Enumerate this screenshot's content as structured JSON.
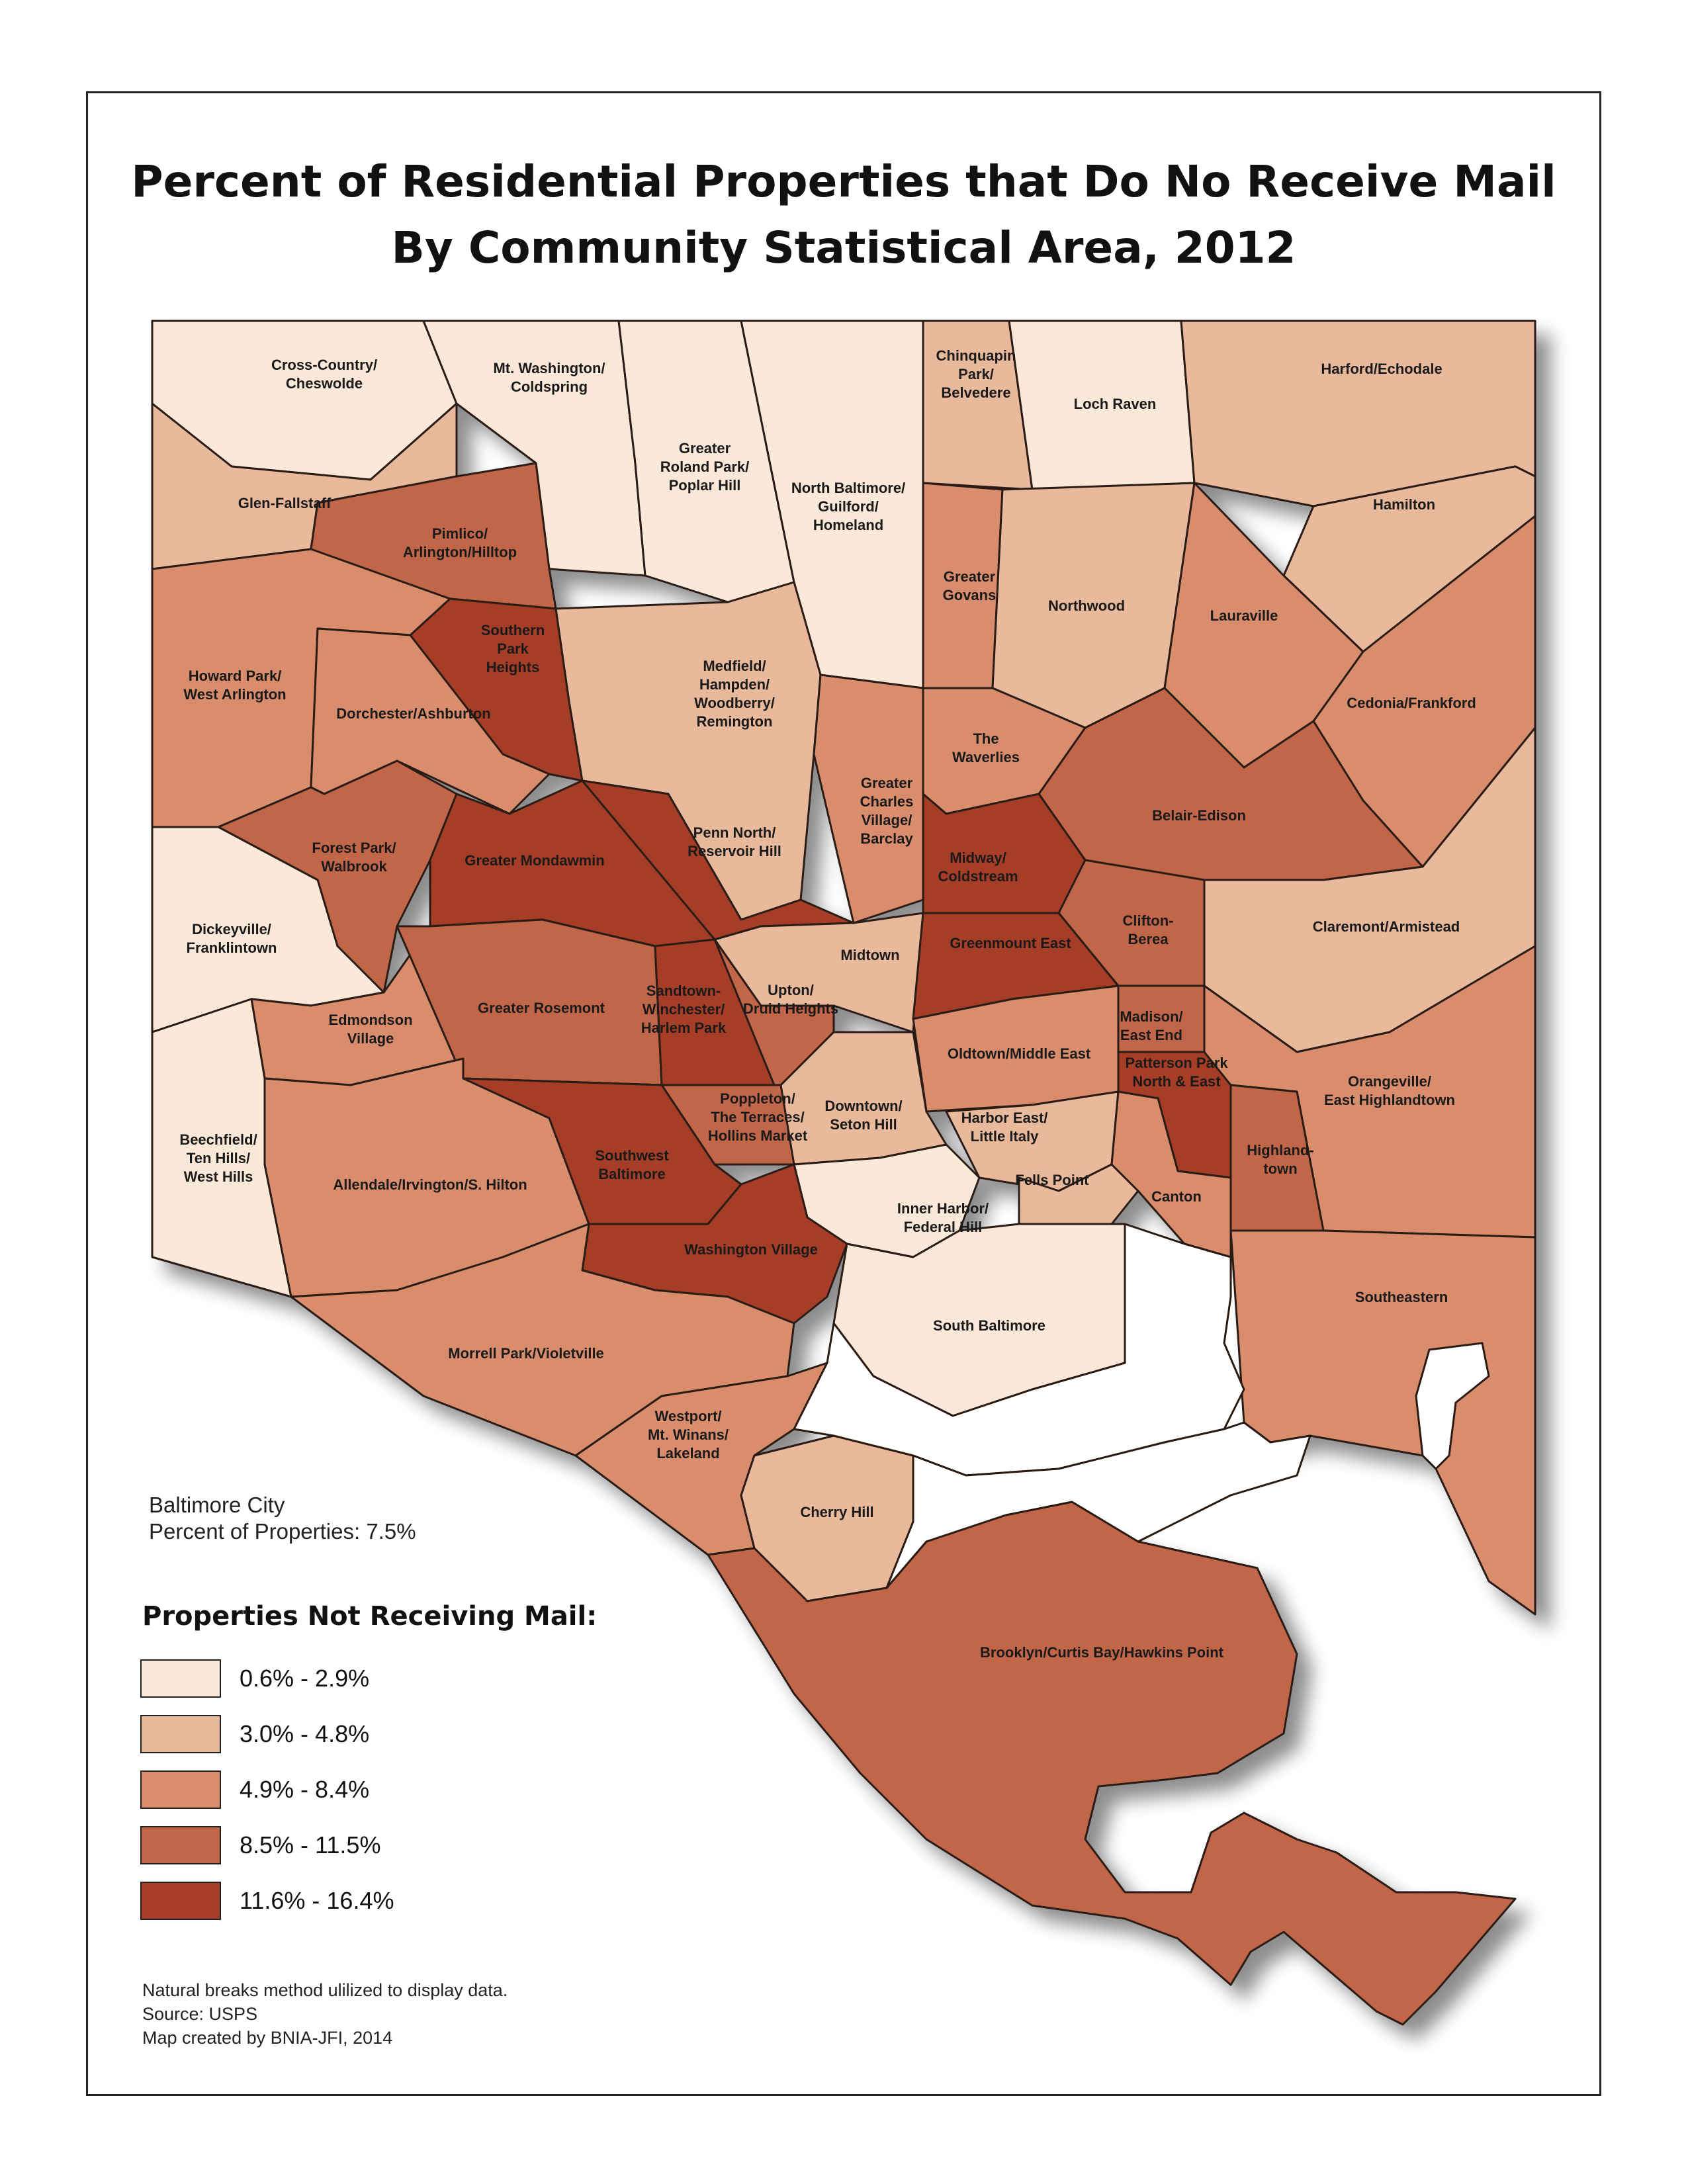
{
  "title": {
    "line1": "Percent of Residential Properties that Do No Receive Mail",
    "line2": "By Community Statistical Area, 2012"
  },
  "colors": {
    "c1": "#fae8d8",
    "c2": "#e9b99c",
    "c3": "#d98d6c",
    "c4": "#c2664a",
    "c5": "#a63d28",
    "water": "#ffffff",
    "border": "#2b1a12"
  },
  "summary": {
    "line1": "Baltimore City",
    "line2": "Percent of Properties: 7.5%"
  },
  "legend": {
    "title": "Properties Not Receiving Mail:",
    "items": [
      {
        "label": "0.6% - 2.9%",
        "color": "#fae8d8"
      },
      {
        "label": "3.0% - 4.8%",
        "color": "#e9b99c"
      },
      {
        "label": "4.9% - 8.4%",
        "color": "#d98d6c"
      },
      {
        "label": "8.5% - 11.5%",
        "color": "#c2664a"
      },
      {
        "label": "11.6% - 16.4%",
        "color": "#a63d28"
      }
    ]
  },
  "notes": {
    "line1": "Natural breaks method ulilized to display data.",
    "line2": "Source: USPS",
    "line3": "Map created by BNIA-JFI, 2014"
  },
  "areas": {
    "cross_country": {
      "name": [
        "Cross-Country/",
        "Cheswolde"
      ],
      "class": 1
    },
    "mt_washington": {
      "name": [
        "Mt. Washington/",
        "Coldspring"
      ],
      "class": 1
    },
    "roland_park": {
      "name": [
        "Greater",
        "Roland Park/",
        "Poplar Hill"
      ],
      "class": 1
    },
    "north_baltimore": {
      "name": [
        "North Baltimore/",
        "Guilford/",
        "Homeland"
      ],
      "class": 1
    },
    "chinquapin": {
      "name": [
        "Chinquapin",
        "Park/",
        "Belvedere"
      ],
      "class": 2
    },
    "loch_raven": {
      "name": [
        "Loch Raven"
      ],
      "class": 1
    },
    "harford": {
      "name": [
        "Harford/Echodale"
      ],
      "class": 2
    },
    "glen_fallstaff": {
      "name": [
        "Glen-Fallstaff"
      ],
      "class": 2
    },
    "pimlico": {
      "name": [
        "Pimlico/",
        "Arlington/Hilltop"
      ],
      "class": 4
    },
    "hamilton": {
      "name": [
        "Hamilton"
      ],
      "class": 2
    },
    "greater_govans": {
      "name": [
        "Greater",
        "Govans"
      ],
      "class": 3
    },
    "northwood": {
      "name": [
        "Northwood"
      ],
      "class": 2
    },
    "lauraville": {
      "name": [
        "Lauraville"
      ],
      "class": 3
    },
    "southern_park": {
      "name": [
        "Southern",
        "Park",
        "Heights"
      ],
      "class": 5
    },
    "howard_park": {
      "name": [
        "Howard Park/",
        "West Arlington"
      ],
      "class": 3
    },
    "medfield": {
      "name": [
        "Medfield/",
        "Hampden/",
        "Woodberry/",
        "Remington"
      ],
      "class": 2
    },
    "dorchester": {
      "name": [
        "Dorchester/Ashburton"
      ],
      "class": 3
    },
    "cedonia": {
      "name": [
        "Cedonia/Frankford"
      ],
      "class": 3
    },
    "waverlies": {
      "name": [
        "The",
        "Waverlies"
      ],
      "class": 3
    },
    "charles_village": {
      "name": [
        "Greater",
        "Charles",
        "Village/",
        "Barclay"
      ],
      "class": 3
    },
    "belair_edison": {
      "name": [
        "Belair-Edison"
      ],
      "class": 4
    },
    "forest_park": {
      "name": [
        "Forest Park/",
        "Walbrook"
      ],
      "class": 4
    },
    "greater_mondawmin": {
      "name": [
        "Greater Mondawmin"
      ],
      "class": 5
    },
    "penn_north": {
      "name": [
        "Penn North/",
        "Reservoir Hill"
      ],
      "class": 5
    },
    "midway": {
      "name": [
        "Midway/",
        "Coldstream"
      ],
      "class": 5
    },
    "dickeyville": {
      "name": [
        "Dickeyville/",
        "Franklintown"
      ],
      "class": 1
    },
    "clifton": {
      "name": [
        "Clifton-",
        "Berea"
      ],
      "class": 4
    },
    "claremont": {
      "name": [
        "Claremont/Armistead"
      ],
      "class": 2
    },
    "midtown": {
      "name": [
        "Midtown"
      ],
      "class": 2
    },
    "greenmount": {
      "name": [
        "Greenmount East"
      ],
      "class": 5
    },
    "edmondson": {
      "name": [
        "Edmondson",
        "Village"
      ],
      "class": 3
    },
    "greater_rosemont": {
      "name": [
        "Greater Rosemont"
      ],
      "class": 4
    },
    "sandtown": {
      "name": [
        "Sandtown-",
        "Winchester/",
        "Harlem Park"
      ],
      "class": 5
    },
    "upton": {
      "name": [
        "Upton/",
        "Druid Heights"
      ],
      "class": 4
    },
    "madison": {
      "name": [
        "Madison/",
        "East End"
      ],
      "class": 4
    },
    "oldtown": {
      "name": [
        "Oldtown/Middle East"
      ],
      "class": 3
    },
    "patterson": {
      "name": [
        "Patterson Park",
        "North & East"
      ],
      "class": 5
    },
    "orangeville": {
      "name": [
        "Orangeville/",
        "East Highlandtown"
      ],
      "class": 3
    },
    "poppleton": {
      "name": [
        "Poppleton/",
        "The Terraces/",
        "Hollins Market"
      ],
      "class": 4
    },
    "downtown": {
      "name": [
        "Downtown/",
        "Seton Hill"
      ],
      "class": 2
    },
    "harbor_east": {
      "name": [
        "Harbor East/",
        "Little Italy"
      ],
      "class": 2
    },
    "beechfield": {
      "name": [
        "Beechfield/",
        "Ten Hills/",
        "West Hills"
      ],
      "class": 1
    },
    "allendale": {
      "name": [
        "Allendale/Irvington/S. Hilton"
      ],
      "class": 3
    },
    "southwest": {
      "name": [
        "Southwest",
        "Baltimore"
      ],
      "class": 5
    },
    "highlandtown": {
      "name": [
        "Highland-",
        "town"
      ],
      "class": 4
    },
    "fells_point": {
      "name": [
        "Fells Point"
      ],
      "class": 2
    },
    "canton": {
      "name": [
        "Canton"
      ],
      "class": 3
    },
    "inner_harbor": {
      "name": [
        "Inner Harbor/",
        "Federal Hill"
      ],
      "class": 1
    },
    "washington_village": {
      "name": [
        "Washington Village"
      ],
      "class": 5
    },
    "southeastern": {
      "name": [
        "Southeastern"
      ],
      "class": 3
    },
    "south_baltimore": {
      "name": [
        "South Baltimore"
      ],
      "class": 1
    },
    "morrell_park": {
      "name": [
        "Morrell Park/Violetville"
      ],
      "class": 3
    },
    "westport": {
      "name": [
        "Westport/",
        "Mt. Winans/",
        "Lakeland"
      ],
      "class": 3
    },
    "cherry_hill": {
      "name": [
        "Cherry Hill"
      ],
      "class": 2
    },
    "brooklyn": {
      "name": [
        "Brooklyn/Curtis Bay/Hawkins Point"
      ],
      "class": 4
    }
  }
}
